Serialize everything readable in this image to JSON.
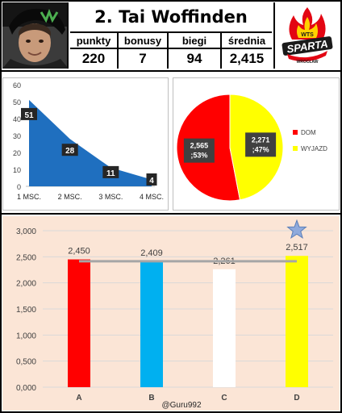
{
  "header": {
    "player_name": "2. Tai Woffinden",
    "stats": [
      {
        "label": "punkty",
        "value": "220"
      },
      {
        "label": "bonusy",
        "value": "7"
      },
      {
        "label": "biegi",
        "value": "94"
      },
      {
        "label": "średnia",
        "value": "2,415"
      }
    ],
    "logo": {
      "top_text": "WTS",
      "main_text": "SPARTA",
      "sub_text": "WROCŁAW",
      "colors": {
        "red": "#e30613",
        "yellow": "#ffd200",
        "black": "#1a1a1a"
      }
    }
  },
  "chart_data": [
    {
      "type": "area",
      "categories": [
        "1 MSC.",
        "2 MSC.",
        "3 MSC.",
        "4 MSC."
      ],
      "values": [
        51,
        28,
        11,
        4
      ],
      "data_labels": [
        "51",
        "28",
        "11",
        "4"
      ],
      "ylim": [
        0,
        60
      ],
      "yticks": [
        "0",
        "10",
        "20",
        "30",
        "40",
        "50",
        "60"
      ],
      "color": "#1f6fbf",
      "grid": false
    },
    {
      "type": "pie",
      "series": [
        {
          "name": "DOM",
          "value": 2.565,
          "label": "2,565\n;53%",
          "color": "#ff0000"
        },
        {
          "name": "WYJAZD",
          "value": 2.271,
          "label": "2,271\n;47%",
          "color": "#ffff00"
        }
      ],
      "percent": [
        53,
        47
      ],
      "legend_position": "right"
    },
    {
      "type": "bar",
      "categories": [
        "A",
        "B",
        "C",
        "D"
      ],
      "values": [
        2.45,
        2.409,
        2.261,
        2.517
      ],
      "data_labels": [
        "2,450",
        "2,409",
        "2,261",
        "2,517"
      ],
      "colors": [
        "#ff0000",
        "#00b0f0",
        "#ffffff",
        "#ffff00"
      ],
      "reference_line": 2.415,
      "reference_color": "#a6a6a6",
      "ylim": [
        0,
        3
      ],
      "yticks": [
        "0,000",
        "0,500",
        "1,000",
        "1,500",
        "2,000",
        "2,500",
        "3,000"
      ],
      "star_on": "D",
      "grid": true,
      "background": "#fbe5d6"
    }
  ],
  "watermark": "@Guru992"
}
